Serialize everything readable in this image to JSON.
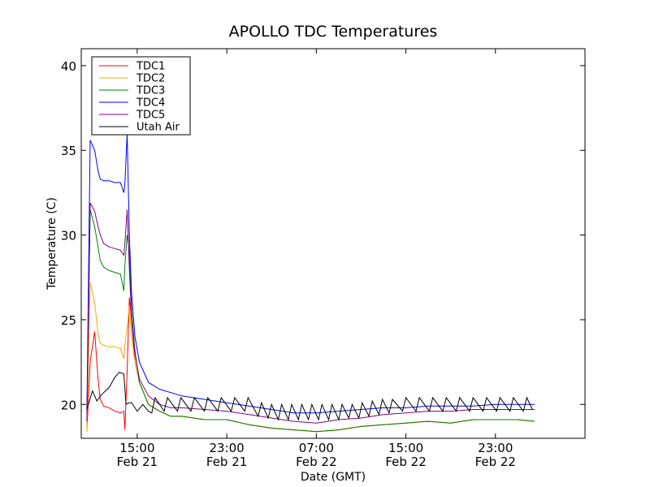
{
  "chart_data": {
    "type": "line",
    "title": "APOLLO TDC Temperatures",
    "xlabel": "Date (GMT)",
    "ylabel": "Temperature (C)",
    "ylim": [
      18,
      41
    ],
    "xlim_hours": [
      -5,
      40
    ],
    "y_ticks": [
      20,
      25,
      30,
      35,
      40
    ],
    "x_ticks": [
      {
        "hour": 0,
        "time": "15:00",
        "date": "Feb 21"
      },
      {
        "hour": 8,
        "time": "23:00",
        "date": "Feb 21"
      },
      {
        "hour": 16,
        "time": "07:00",
        "date": "Feb 22"
      },
      {
        "hour": 24,
        "time": "15:00",
        "date": "Feb 22"
      },
      {
        "hour": 32,
        "time": "23:00",
        "date": "Feb 22"
      }
    ],
    "legend_position": "top-left",
    "series": [
      {
        "name": "TDC1",
        "color": "#ff0000",
        "x": [
          -4.5,
          -4.2,
          -3.8,
          -3.5,
          -3.3,
          -3.0,
          -2.5,
          -2.0,
          -1.5,
          -1.2,
          -1.1,
          -0.9,
          -0.7,
          -0.5,
          -0.2,
          0.2,
          1,
          2,
          3,
          4,
          6,
          8,
          10,
          12,
          14,
          16,
          18,
          20,
          22,
          24,
          26,
          28,
          30,
          32,
          34,
          35.5
        ],
        "y": [
          18.4,
          22.5,
          24.3,
          21.5,
          20.3,
          19.9,
          19.8,
          19.6,
          19.5,
          19.6,
          18.5,
          22.0,
          26.3,
          25.0,
          22.5,
          21.3,
          20.0,
          19.6,
          19.3,
          19.3,
          19.1,
          19.1,
          18.8,
          18.6,
          18.5,
          18.4,
          18.5,
          18.7,
          18.8,
          18.9,
          19.0,
          18.9,
          19.1,
          19.1,
          19.1,
          19.0
        ]
      },
      {
        "name": "TDC2",
        "color": "#ffa500",
        "x": [
          -4.5,
          -4.2,
          -3.8,
          -3.5,
          -3.3,
          -3.0,
          -2.5,
          -2.0,
          -1.5,
          -1.2,
          -1.1,
          -0.9,
          -0.7,
          -0.5,
          -0.2,
          0.2,
          1,
          2,
          3,
          4,
          6,
          8,
          10,
          12,
          14,
          16,
          18,
          20,
          22,
          24,
          26,
          28,
          30,
          32,
          34,
          35.5
        ],
        "y": [
          18.4,
          27.2,
          26.0,
          24.2,
          23.6,
          23.5,
          23.4,
          23.4,
          23.3,
          22.7,
          23.5,
          24.5,
          25.8,
          24.0,
          22.5,
          21.3,
          20.0,
          19.6,
          19.3,
          19.3,
          19.1,
          19.1,
          18.8,
          18.6,
          18.5,
          18.4,
          18.5,
          18.7,
          18.8,
          18.9,
          19.0,
          18.9,
          19.1,
          19.1,
          19.1,
          19.0
        ]
      },
      {
        "name": "TDC3",
        "color": "#008000",
        "x": [
          -4.5,
          -4.2,
          -3.8,
          -3.5,
          -3.3,
          -3.0,
          -2.5,
          -2.0,
          -1.5,
          -1.2,
          -1.1,
          -0.9,
          -0.7,
          -0.5,
          -0.2,
          0.2,
          1,
          2,
          3,
          4,
          6,
          8,
          10,
          12,
          14,
          16,
          18,
          20,
          22,
          24,
          26,
          28,
          30,
          32,
          34,
          35.5
        ],
        "y": [
          19.0,
          31.5,
          30.5,
          29.3,
          28.5,
          28.1,
          27.9,
          27.8,
          27.7,
          26.7,
          28.2,
          30.0,
          29.0,
          25.5,
          23.2,
          21.3,
          20.0,
          19.6,
          19.3,
          19.3,
          19.1,
          19.1,
          18.8,
          18.6,
          18.5,
          18.4,
          18.5,
          18.7,
          18.8,
          18.9,
          19.0,
          18.9,
          19.1,
          19.1,
          19.1,
          19.0
        ]
      },
      {
        "name": "TDC4",
        "color": "#0000ff",
        "x": [
          -4.5,
          -4.2,
          -3.8,
          -3.5,
          -3.3,
          -3.0,
          -2.5,
          -2.0,
          -1.5,
          -1.2,
          -1.1,
          -0.9,
          -0.7,
          -0.5,
          -0.2,
          0.2,
          1,
          2,
          3,
          4,
          6,
          8,
          10,
          12,
          14,
          16,
          18,
          20,
          22,
          24,
          26,
          28,
          30,
          32,
          34,
          35.5
        ],
        "y": [
          19.5,
          35.6,
          35.0,
          33.8,
          33.3,
          33.2,
          33.2,
          33.1,
          33.1,
          32.5,
          33.0,
          36.0,
          30.0,
          26.5,
          24.0,
          22.5,
          21.3,
          20.9,
          20.7,
          20.5,
          20.3,
          20.1,
          19.9,
          19.7,
          19.5,
          19.5,
          19.6,
          19.7,
          19.8,
          19.8,
          19.9,
          19.9,
          19.9,
          20.0,
          20.0,
          20.0
        ]
      },
      {
        "name": "TDC5",
        "color": "#800080",
        "x": [
          -4.5,
          -4.2,
          -3.8,
          -3.5,
          -3.3,
          -3.0,
          -2.5,
          -2.0,
          -1.5,
          -1.2,
          -1.1,
          -0.9,
          -0.7,
          -0.5,
          -0.2,
          0.2,
          1,
          2,
          3,
          4,
          6,
          8,
          10,
          12,
          14,
          16,
          18,
          20,
          22,
          24,
          26,
          28,
          30,
          32,
          34,
          35.5
        ],
        "y": [
          19.0,
          31.9,
          31.4,
          30.5,
          30.0,
          29.5,
          29.3,
          29.2,
          29.1,
          28.8,
          29.5,
          31.5,
          28.0,
          25.0,
          23.0,
          21.5,
          20.5,
          20.0,
          19.8,
          19.8,
          19.7,
          19.6,
          19.4,
          19.2,
          19.0,
          18.9,
          19.1,
          19.2,
          19.4,
          19.5,
          19.6,
          19.6,
          19.7,
          19.7,
          19.7,
          19.7
        ]
      },
      {
        "name": "Utah Air",
        "color": "#000000",
        "x": [
          -4.5,
          -4.0,
          -3.6,
          -3.3,
          -3.0,
          -2.5,
          -2.0,
          -1.6,
          -1.2,
          -1.0,
          -0.8,
          -0.5,
          0.0,
          0.5,
          1.0,
          1.3,
          1.6,
          2.4,
          2.7,
          3.6,
          3.9,
          4.8,
          5.1,
          6.0,
          6.3,
          7.2,
          7.5,
          8.4,
          8.7,
          9.6,
          9.9,
          10.8,
          11.1,
          11.7,
          12.0,
          12.6,
          12.9,
          13.5,
          13.8,
          14.4,
          14.7,
          15.3,
          15.6,
          16.2,
          16.5,
          17.1,
          17.4,
          18.0,
          18.3,
          18.9,
          19.2,
          19.8,
          20.1,
          20.7,
          21.0,
          21.6,
          21.9,
          22.5,
          22.8,
          23.7,
          24.0,
          24.9,
          25.2,
          26.1,
          26.4,
          27.3,
          27.6,
          28.5,
          28.8,
          29.7,
          30.0,
          30.9,
          31.2,
          32.1,
          32.4,
          33.3,
          33.6,
          34.5,
          34.8,
          35.3
        ],
        "y": [
          19.7,
          20.8,
          20.2,
          20.5,
          20.7,
          21.0,
          21.6,
          21.9,
          21.8,
          20.0,
          20.1,
          20.1,
          19.6,
          20.0,
          19.6,
          19.5,
          20.4,
          19.6,
          20.4,
          19.6,
          20.4,
          19.6,
          20.4,
          19.6,
          20.4,
          19.6,
          20.4,
          19.6,
          20.4,
          19.6,
          20.4,
          19.3,
          20.1,
          19.2,
          20.0,
          19.1,
          20.0,
          19.1,
          20.0,
          19.1,
          20.0,
          19.1,
          20.0,
          19.1,
          20.0,
          19.1,
          20.0,
          19.1,
          20.0,
          19.2,
          20.0,
          19.2,
          20.1,
          19.3,
          20.2,
          19.4,
          20.3,
          19.5,
          20.3,
          19.6,
          20.4,
          19.6,
          20.4,
          19.6,
          20.4,
          19.6,
          20.4,
          19.6,
          20.4,
          19.6,
          20.4,
          19.6,
          20.4,
          19.6,
          20.4,
          19.6,
          20.4,
          19.6,
          20.4,
          19.7
        ]
      }
    ]
  }
}
